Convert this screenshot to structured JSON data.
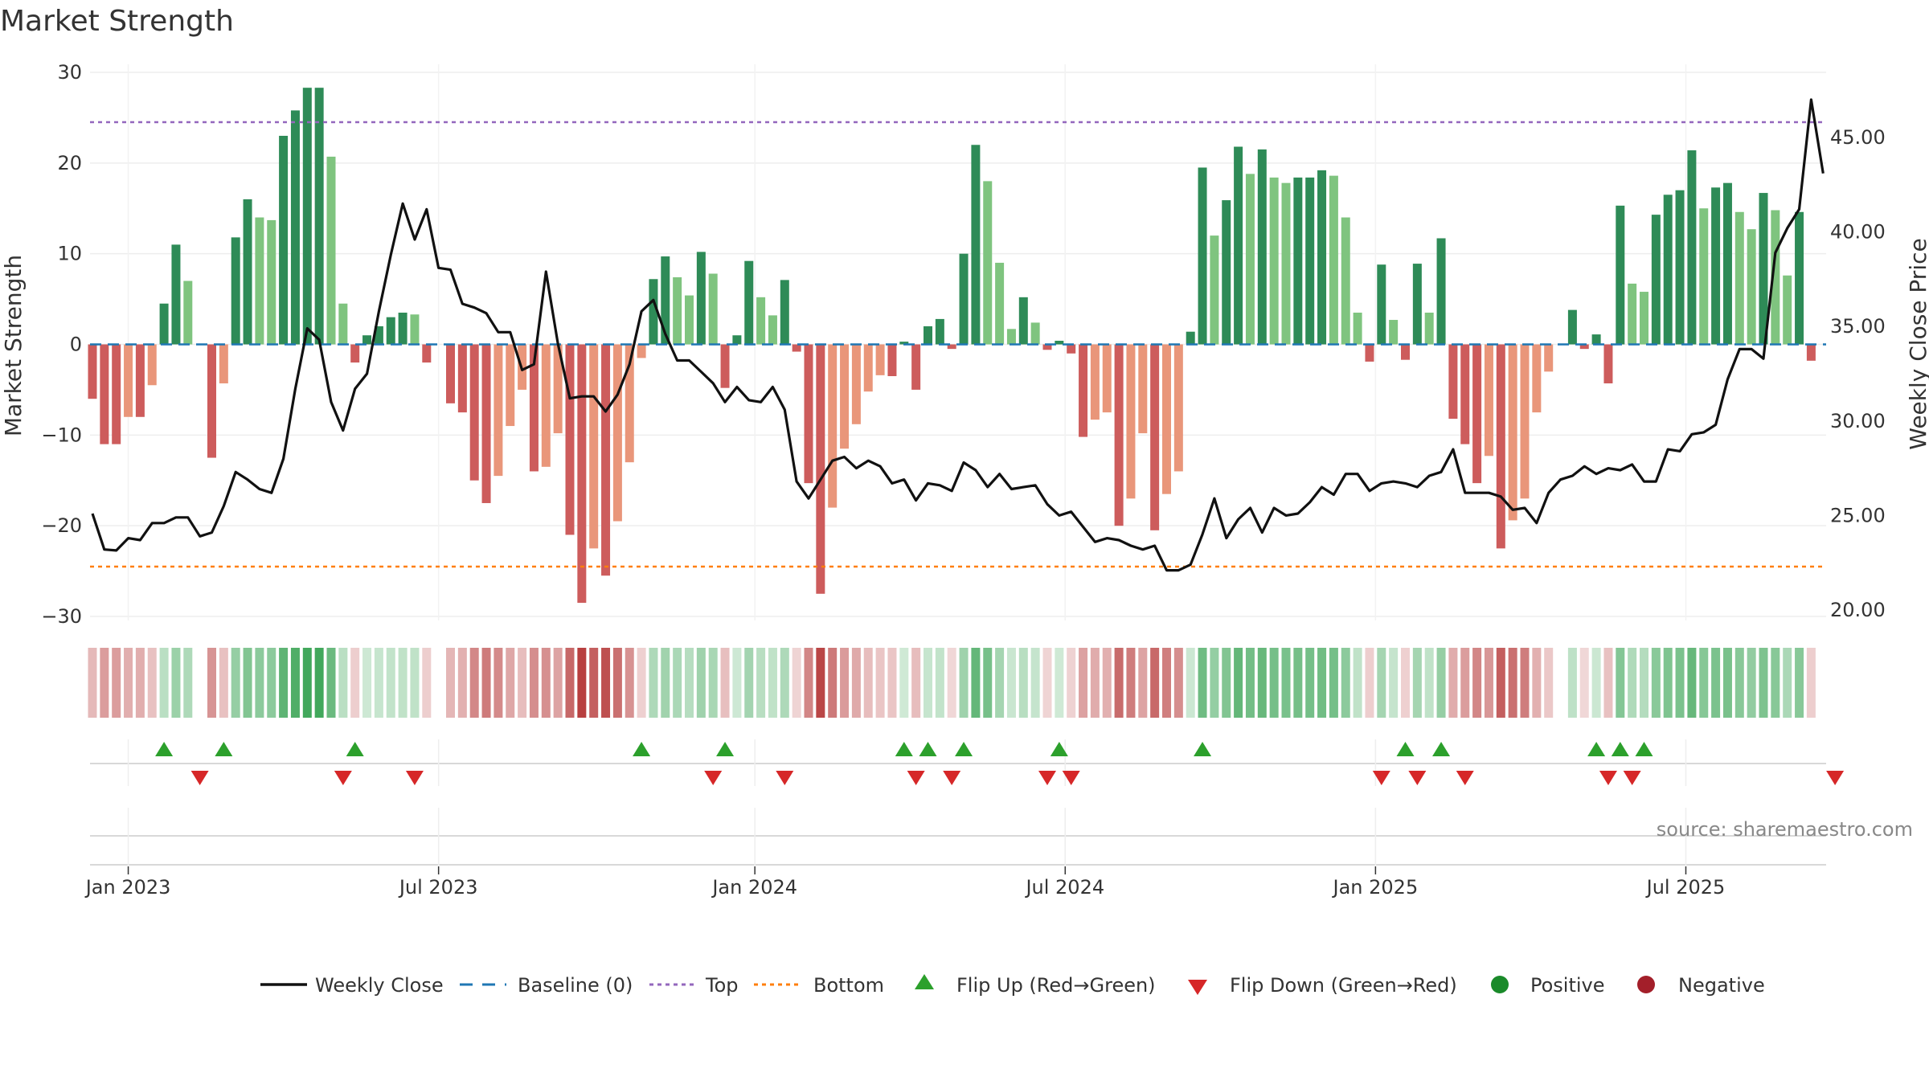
{
  "chart_data": {
    "type": "bar",
    "title": "Market Strength",
    "ylabel": "Market Strength",
    "y2label": "Weekly Close Price",
    "ylim": [
      -30,
      30
    ],
    "y2lim": [
      20,
      45
    ],
    "yticks": [
      "−30",
      "−20",
      "−10",
      "0",
      "10",
      "20",
      "30"
    ],
    "y2ticks": [
      "20.00",
      "25.00",
      "30.00",
      "35.00",
      "40.00",
      "45.00"
    ],
    "xticks": [
      {
        "label": "Jan 2023",
        "index": 3
      },
      {
        "label": "Jul 2023",
        "index": 29
      },
      {
        "label": "Jan 2024",
        "index": 55.5
      },
      {
        "label": "Jul 2024",
        "index": 81.5
      },
      {
        "label": "Jan 2025",
        "index": 107.5
      },
      {
        "label": "Jul 2025",
        "index": 133.5
      }
    ],
    "top_line": 24.5,
    "bottom_line": -24.5,
    "strength": [
      -6,
      -11,
      -11,
      -8,
      -8,
      -4.5,
      4.5,
      11,
      7,
      0,
      -12.5,
      -4.3,
      11.8,
      16,
      14,
      13.7,
      23,
      25.8,
      28.3,
      28.3,
      20.7,
      4.5,
      -2,
      1,
      2,
      3,
      3.5,
      3.3,
      -2,
      0,
      -6.5,
      -7.5,
      -15,
      -17.5,
      -14.5,
      -9,
      -5,
      -14,
      -13.5,
      -9.8,
      -21,
      -28.5,
      -22.5,
      -25.5,
      -19.5,
      -13,
      -1.5,
      7.2,
      9.7,
      7.4,
      5.4,
      10.2,
      7.8,
      -4.8,
      1,
      9.2,
      5.2,
      3.2,
      7.1,
      -0.8,
      -15.3,
      -27.5,
      -18,
      -11.5,
      -8.8,
      -5.2,
      -3.4,
      -3.5,
      0.3,
      -5,
      2,
      2.8,
      -0.5,
      10,
      22,
      18,
      9,
      1.7,
      5.2,
      2.4,
      -0.6,
      0.4,
      -1,
      -10.2,
      -8.3,
      -7.5,
      -20,
      -17,
      -9.8,
      -20.5,
      -16.5,
      -14,
      1.4,
      19.5,
      12,
      15.9,
      21.8,
      18.8,
      21.5,
      18.4,
      17.8,
      18.4,
      18.4,
      19.2,
      18.6,
      14,
      3.5,
      -1.9,
      8.8,
      2.7,
      -1.7,
      8.9,
      3.5,
      11.7,
      -8.2,
      -11,
      -15.3,
      -12.3,
      -22.5,
      -19.4,
      -17,
      -7.5,
      -3,
      0,
      3.8,
      -0.5,
      1.1,
      -4.3,
      15.3,
      6.7,
      5.8,
      14.3,
      16.5,
      17,
      21.4,
      15,
      17.3,
      17.8,
      14.6,
      12.7,
      16.7,
      14.8,
      7.6,
      14.6,
      -1.8
    ],
    "price": [
      25.1,
      23.2,
      23.15,
      23.8,
      23.7,
      24.6,
      24.6,
      24.9,
      24.9,
      23.9,
      24.1,
      25.5,
      27.3,
      26.9,
      26.4,
      26.2,
      28,
      31.7,
      34.9,
      34.3,
      31,
      29.5,
      31.7,
      32.5,
      35.8,
      38.8,
      41.5,
      39.6,
      41.2,
      38.1,
      38,
      36.2,
      36,
      35.7,
      34.7,
      34.7,
      32.7,
      33,
      37.9,
      34.1,
      31.2,
      31.3,
      31.3,
      30.5,
      31.4,
      33,
      35.8,
      36.4,
      34.6,
      33.2,
      33.2,
      32.6,
      32,
      31,
      31.8,
      31.1,
      31,
      31.8,
      30.6,
      26.8,
      25.9,
      26.9,
      27.9,
      28.1,
      27.5,
      27.9,
      27.6,
      26.7,
      26.9,
      25.8,
      26.7,
      26.6,
      26.3,
      27.8,
      27.4,
      26.5,
      27.2,
      26.4,
      26.5,
      26.6,
      25.6,
      25,
      25.2,
      24.4,
      23.6,
      23.8,
      23.7,
      23.4,
      23.2,
      23.4,
      22.1,
      22.1,
      22.4,
      24,
      25.9,
      23.8,
      24.8,
      25.4,
      24.1,
      25.4,
      25,
      25.1,
      25.7,
      26.5,
      26.1,
      27.2,
      27.2,
      26.3,
      26.7,
      26.8,
      26.7,
      26.5,
      27.1,
      27.3,
      28.5,
      26.2,
      26.2,
      26.2,
      26,
      25.3,
      25.4,
      24.6,
      26.2,
      26.9,
      27.1,
      27.6,
      27.2,
      27.5,
      27.4,
      27.7,
      26.8,
      26.8,
      28.5,
      28.4,
      29.3,
      29.4,
      29.8,
      32.2,
      33.8,
      33.8,
      33.3,
      38.9,
      40.2,
      41.2,
      47,
      43.1
    ],
    "flips_up": [
      6,
      11,
      22,
      46,
      53,
      68,
      70,
      73,
      81,
      93,
      110,
      113,
      126,
      128,
      130
    ],
    "flips_down": [
      9,
      21,
      27,
      52,
      58,
      69,
      72,
      80,
      82,
      108,
      111,
      115,
      127,
      129,
      146
    ],
    "legend": [
      {
        "label": "Weekly Close",
        "marker": "line",
        "color": "#111111"
      },
      {
        "label": "Baseline (0)",
        "marker": "dash",
        "color": "#1f77b4"
      },
      {
        "label": "Top",
        "marker": "dot",
        "color": "#9467bd"
      },
      {
        "label": "Bottom",
        "marker": "dot",
        "color": "#ff7f0e"
      },
      {
        "label": "Flip Up (Red→Green)",
        "marker": "triangle-up",
        "color": "#2ca02c"
      },
      {
        "label": "Flip Down (Green→Red)",
        "marker": "triangle-down",
        "color": "#d62728"
      },
      {
        "label": "Positive",
        "marker": "circle",
        "color": "#1a8a2a"
      },
      {
        "label": "Negative",
        "marker": "circle",
        "color": "#a31f2a"
      }
    ],
    "grid": true,
    "legend_position": "bottom"
  },
  "source": "source: sharemaestro.com",
  "colors": {
    "pos_strong": "#2e8b57",
    "pos_light": "#7fc47f",
    "neg_strong": "#cd5c5c",
    "neg_light": "#e9967a"
  }
}
